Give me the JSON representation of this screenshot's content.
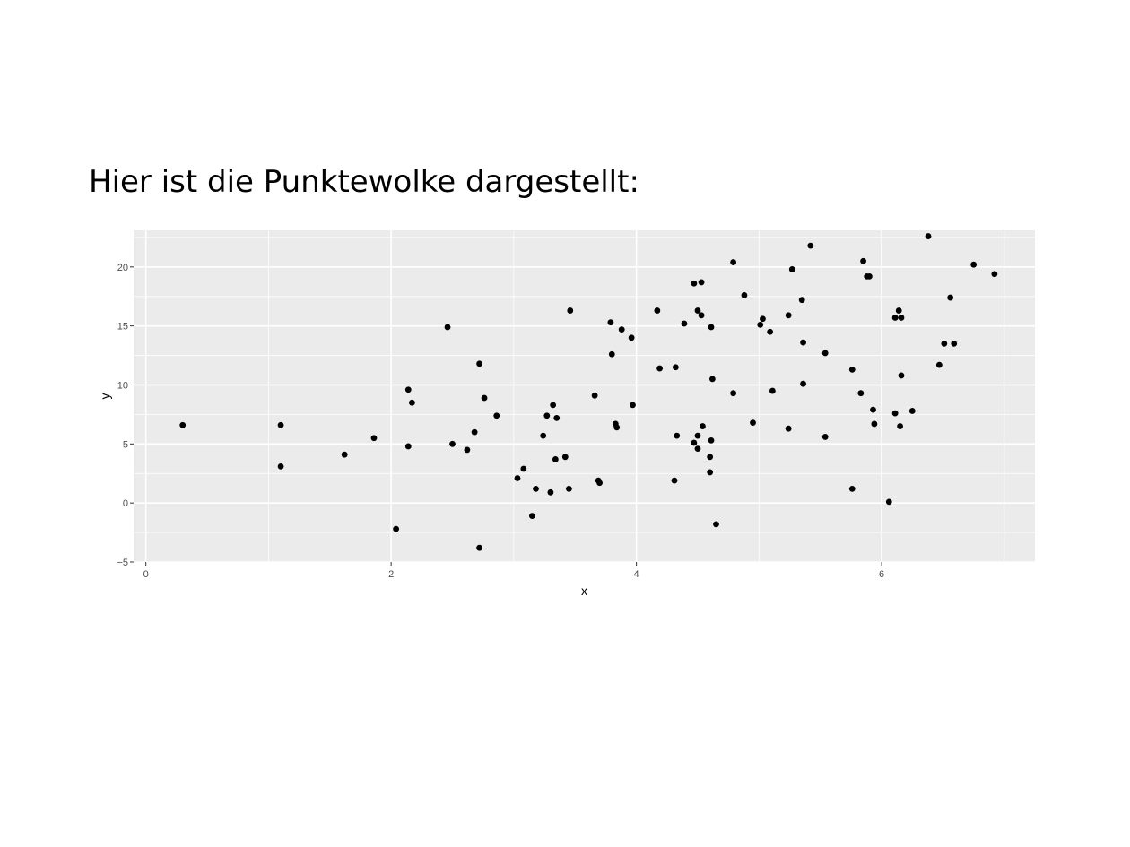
{
  "heading": "Hier ist die Punktewolke dargestellt:",
  "colors": {
    "panel_background": "#ebebeb",
    "grid_line": "#ffffff",
    "point": "#000000",
    "tick_label": "#4d4d4d"
  },
  "chart_data": {
    "type": "scatter",
    "xlabel": "x",
    "ylabel": "y",
    "xlim": [
      -0.1,
      7.25
    ],
    "ylim": [
      -5,
      23.1
    ],
    "x_ticks": [
      0,
      2,
      4,
      6
    ],
    "y_ticks": [
      -5,
      0,
      5,
      10,
      15,
      20
    ],
    "grid": true,
    "points": [
      {
        "x": 0.3,
        "y": 6.6
      },
      {
        "x": 1.1,
        "y": 6.6
      },
      {
        "x": 1.1,
        "y": 3.1
      },
      {
        "x": 1.62,
        "y": 4.1
      },
      {
        "x": 1.86,
        "y": 5.5
      },
      {
        "x": 2.04,
        "y": -2.2
      },
      {
        "x": 2.14,
        "y": 9.6
      },
      {
        "x": 2.17,
        "y": 8.5
      },
      {
        "x": 2.14,
        "y": 4.8
      },
      {
        "x": 2.46,
        "y": 14.9
      },
      {
        "x": 2.5,
        "y": 5.0
      },
      {
        "x": 2.62,
        "y": 4.5
      },
      {
        "x": 2.68,
        "y": 6.0
      },
      {
        "x": 2.72,
        "y": 11.8
      },
      {
        "x": 2.76,
        "y": 8.9
      },
      {
        "x": 2.86,
        "y": 7.4
      },
      {
        "x": 2.72,
        "y": -3.8
      },
      {
        "x": 3.03,
        "y": 2.1
      },
      {
        "x": 3.08,
        "y": 2.9
      },
      {
        "x": 3.18,
        "y": 1.2
      },
      {
        "x": 3.15,
        "y": -1.1
      },
      {
        "x": 3.24,
        "y": 5.7
      },
      {
        "x": 3.27,
        "y": 7.4
      },
      {
        "x": 3.32,
        "y": 8.3
      },
      {
        "x": 3.35,
        "y": 7.2
      },
      {
        "x": 3.34,
        "y": 3.7
      },
      {
        "x": 3.42,
        "y": 3.9
      },
      {
        "x": 3.3,
        "y": 0.9
      },
      {
        "x": 3.45,
        "y": 1.2
      },
      {
        "x": 3.46,
        "y": 16.3
      },
      {
        "x": 3.66,
        "y": 9.1
      },
      {
        "x": 3.69,
        "y": 1.9
      },
      {
        "x": 3.7,
        "y": 1.7
      },
      {
        "x": 3.79,
        "y": 15.3
      },
      {
        "x": 3.8,
        "y": 12.6
      },
      {
        "x": 3.83,
        "y": 6.7
      },
      {
        "x": 3.84,
        "y": 6.4
      },
      {
        "x": 3.88,
        "y": 14.7
      },
      {
        "x": 3.96,
        "y": 14.0
      },
      {
        "x": 3.97,
        "y": 8.3
      },
      {
        "x": 4.17,
        "y": 16.3
      },
      {
        "x": 4.19,
        "y": 11.4
      },
      {
        "x": 4.32,
        "y": 11.5
      },
      {
        "x": 4.33,
        "y": 5.7
      },
      {
        "x": 4.31,
        "y": 1.9
      },
      {
        "x": 4.39,
        "y": 15.2
      },
      {
        "x": 4.47,
        "y": 18.6
      },
      {
        "x": 4.53,
        "y": 18.7
      },
      {
        "x": 4.5,
        "y": 16.3
      },
      {
        "x": 4.53,
        "y": 15.9
      },
      {
        "x": 4.5,
        "y": 5.7
      },
      {
        "x": 4.47,
        "y": 5.1
      },
      {
        "x": 4.5,
        "y": 4.6
      },
      {
        "x": 4.54,
        "y": 6.5
      },
      {
        "x": 4.61,
        "y": 14.9
      },
      {
        "x": 4.62,
        "y": 10.5
      },
      {
        "x": 4.61,
        "y": 5.3
      },
      {
        "x": 4.6,
        "y": 3.9
      },
      {
        "x": 4.6,
        "y": 2.6
      },
      {
        "x": 4.65,
        "y": -1.8
      },
      {
        "x": 4.79,
        "y": 20.4
      },
      {
        "x": 4.79,
        "y": 9.3
      },
      {
        "x": 4.88,
        "y": 17.6
      },
      {
        "x": 4.95,
        "y": 6.8
      },
      {
        "x": 5.01,
        "y": 15.1
      },
      {
        "x": 5.03,
        "y": 15.6
      },
      {
        "x": 5.09,
        "y": 14.5
      },
      {
        "x": 5.11,
        "y": 9.5
      },
      {
        "x": 5.24,
        "y": 15.9
      },
      {
        "x": 5.24,
        "y": 6.3
      },
      {
        "x": 5.27,
        "y": 19.8
      },
      {
        "x": 5.35,
        "y": 17.2
      },
      {
        "x": 5.36,
        "y": 13.6
      },
      {
        "x": 5.36,
        "y": 10.1
      },
      {
        "x": 5.42,
        "y": 21.8
      },
      {
        "x": 5.54,
        "y": 12.7
      },
      {
        "x": 5.54,
        "y": 5.6
      },
      {
        "x": 5.76,
        "y": 11.3
      },
      {
        "x": 5.76,
        "y": 1.2
      },
      {
        "x": 5.83,
        "y": 9.3
      },
      {
        "x": 5.85,
        "y": 20.5
      },
      {
        "x": 5.88,
        "y": 19.2
      },
      {
        "x": 5.9,
        "y": 19.2
      },
      {
        "x": 5.93,
        "y": 7.9
      },
      {
        "x": 5.94,
        "y": 6.7
      },
      {
        "x": 6.06,
        "y": 0.1
      },
      {
        "x": 6.11,
        "y": 15.7
      },
      {
        "x": 6.14,
        "y": 16.3
      },
      {
        "x": 6.16,
        "y": 15.7
      },
      {
        "x": 6.16,
        "y": 10.8
      },
      {
        "x": 6.11,
        "y": 7.6
      },
      {
        "x": 6.15,
        "y": 6.5
      },
      {
        "x": 6.25,
        "y": 7.8
      },
      {
        "x": 6.38,
        "y": 22.6
      },
      {
        "x": 6.47,
        "y": 11.7
      },
      {
        "x": 6.51,
        "y": 13.5
      },
      {
        "x": 6.56,
        "y": 17.4
      },
      {
        "x": 6.59,
        "y": 13.5
      },
      {
        "x": 6.75,
        "y": 20.2
      },
      {
        "x": 6.92,
        "y": 19.4
      }
    ]
  }
}
